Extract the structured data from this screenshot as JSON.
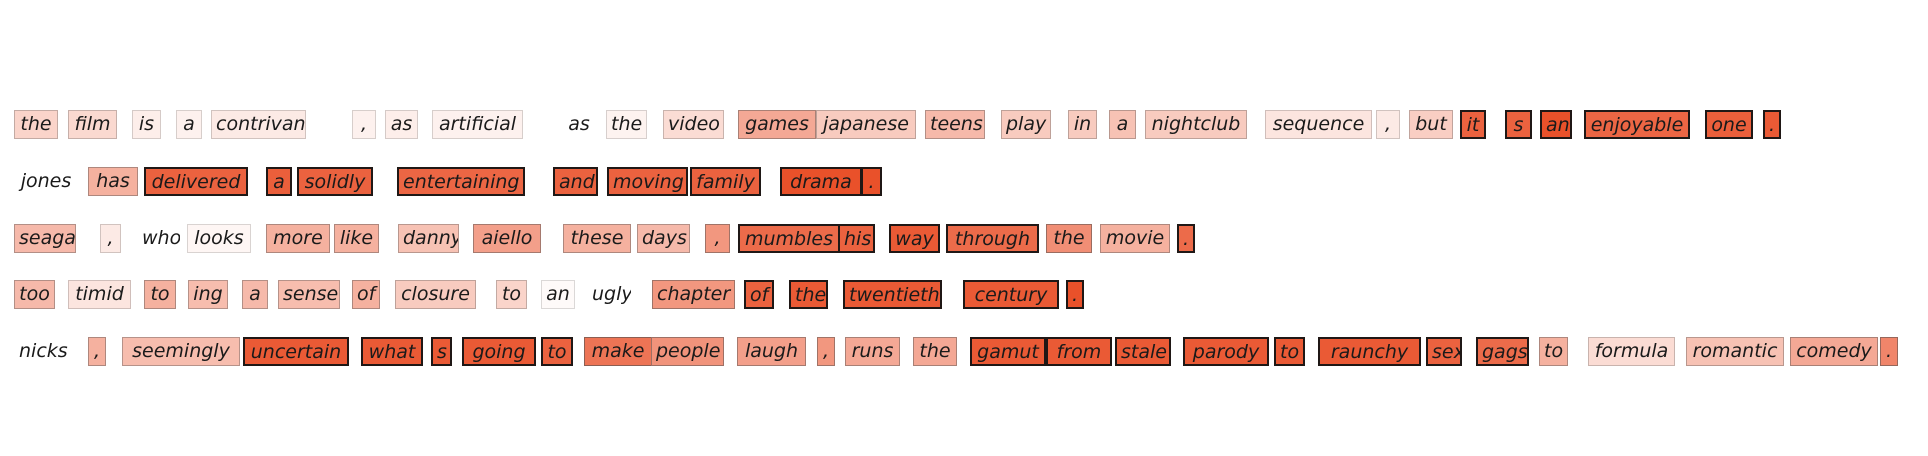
{
  "palette": {
    "low": "#ffffff",
    "high": "#e9512a"
  },
  "rows": [
    {
      "tokens": [
        {
          "text": "the",
          "w": 0.25
        },
        {
          "text": "film",
          "w": 0.22
        },
        {
          "text": "is",
          "w": 0.1
        },
        {
          "text": "a",
          "w": 0.08
        },
        {
          "text": "contrivance",
          "w": 0.12
        },
        {
          "text": ",",
          "w": 0.08
        },
        {
          "text": "as",
          "w": 0.1
        },
        {
          "text": "artificial",
          "w": 0.08
        },
        {
          "text": "as",
          "w": 0
        },
        {
          "text": "the",
          "w": 0.07
        },
        {
          "text": "video",
          "w": 0.2
        },
        {
          "text": "games",
          "w": 0.5
        },
        {
          "text": "japanese",
          "w": 0.3
        },
        {
          "text": "teens",
          "w": 0.4
        },
        {
          "text": "play",
          "w": 0.3
        },
        {
          "text": "in",
          "w": 0.3
        },
        {
          "text": "a",
          "w": 0.35
        },
        {
          "text": "nightclub",
          "w": 0.3
        },
        {
          "text": "sequence",
          "w": 0.15
        },
        {
          "text": ",",
          "w": 0.12
        },
        {
          "text": "but",
          "w": 0.28
        },
        {
          "text": "it",
          "w": 0.9
        },
        {
          "text": "s",
          "w": 0.9
        },
        {
          "text": "an",
          "w": 1
        },
        {
          "text": "enjoyable",
          "w": 0.88
        },
        {
          "text": "one",
          "w": 0.92
        },
        {
          "text": ".",
          "w": 0.95
        }
      ]
    },
    {
      "tokens": [
        {
          "text": "jones",
          "w": 0
        },
        {
          "text": "has",
          "w": 0.45
        },
        {
          "text": "delivered",
          "w": 0.9
        },
        {
          "text": "a",
          "w": 0.92
        },
        {
          "text": "solidly",
          "w": 0.9
        },
        {
          "text": "entertaining",
          "w": 0.88
        },
        {
          "text": "and",
          "w": 0.9
        },
        {
          "text": "moving",
          "w": 0.9
        },
        {
          "text": "family",
          "w": 0.9
        },
        {
          "text": "drama",
          "w": 1
        },
        {
          "text": ".",
          "w": 1
        }
      ]
    },
    {
      "tokens": [
        {
          "text": "seagal",
          "w": 0.4
        },
        {
          "text": ",",
          "w": 0.12
        },
        {
          "text": "who",
          "w": 0
        },
        {
          "text": "looks",
          "w": 0.05
        },
        {
          "text": "more",
          "w": 0.45
        },
        {
          "text": "like",
          "w": 0.45
        },
        {
          "text": "danny",
          "w": 0.35
        },
        {
          "text": "aiello",
          "w": 0.55
        },
        {
          "text": "these",
          "w": 0.45
        },
        {
          "text": "days",
          "w": 0.4
        },
        {
          "text": ",",
          "w": 0.6
        },
        {
          "text": "mumbles",
          "w": 0.85
        },
        {
          "text": "his",
          "w": 0.9
        },
        {
          "text": "way",
          "w": 0.95
        },
        {
          "text": "through",
          "w": 0.85
        },
        {
          "text": "the",
          "w": 0.65
        },
        {
          "text": "movie",
          "w": 0.45
        },
        {
          "text": ".",
          "w": 0.85
        }
      ]
    },
    {
      "tokens": [
        {
          "text": "too",
          "w": 0.4
        },
        {
          "text": "timid",
          "w": 0.15
        },
        {
          "text": "to",
          "w": 0.45
        },
        {
          "text": "ing",
          "w": 0.38
        },
        {
          "text": "a",
          "w": 0.4
        },
        {
          "text": "sense",
          "w": 0.38
        },
        {
          "text": "of",
          "w": 0.45
        },
        {
          "text": "closure",
          "w": 0.3
        },
        {
          "text": "to",
          "w": 0.25
        },
        {
          "text": "an",
          "w": 0.03
        },
        {
          "text": "ugly",
          "w": 0
        },
        {
          "text": "chapter",
          "w": 0.6
        },
        {
          "text": "of",
          "w": 0.9
        },
        {
          "text": "the",
          "w": 0.95
        },
        {
          "text": "twentieth",
          "w": 0.95
        },
        {
          "text": "century",
          "w": 0.95
        },
        {
          "text": ".",
          "w": 1
        }
      ]
    },
    {
      "tokens": [
        {
          "text": "nicks",
          "w": 0
        },
        {
          "text": ",",
          "w": 0.45
        },
        {
          "text": "seemingly",
          "w": 0.38
        },
        {
          "text": "uncertain",
          "w": 0.95
        },
        {
          "text": "what",
          "w": 0.95
        },
        {
          "text": "s",
          "w": 0.95
        },
        {
          "text": "going",
          "w": 0.95
        },
        {
          "text": "to",
          "w": 0.9
        },
        {
          "text": "make",
          "w": 0.8
        },
        {
          "text": "people",
          "w": 0.62
        },
        {
          "text": "laugh",
          "w": 0.55
        },
        {
          "text": ",",
          "w": 0.6
        },
        {
          "text": "runs",
          "w": 0.5
        },
        {
          "text": "the",
          "w": 0.5
        },
        {
          "text": "gamut",
          "w": 0.95
        },
        {
          "text": "from",
          "w": 0.95
        },
        {
          "text": "stale",
          "w": 0.95
        },
        {
          "text": "parody",
          "w": 0.95
        },
        {
          "text": "to",
          "w": 0.95
        },
        {
          "text": "raunchy",
          "w": 0.95
        },
        {
          "text": "sex",
          "w": 0.9
        },
        {
          "text": "gags",
          "w": 0.85
        },
        {
          "text": "to",
          "w": 0.45
        },
        {
          "text": "formula",
          "w": 0.2
        },
        {
          "text": "romantic",
          "w": 0.35
        },
        {
          "text": "comedy",
          "w": 0.5
        },
        {
          "text": ".",
          "w": 0.7
        }
      ]
    }
  ]
}
